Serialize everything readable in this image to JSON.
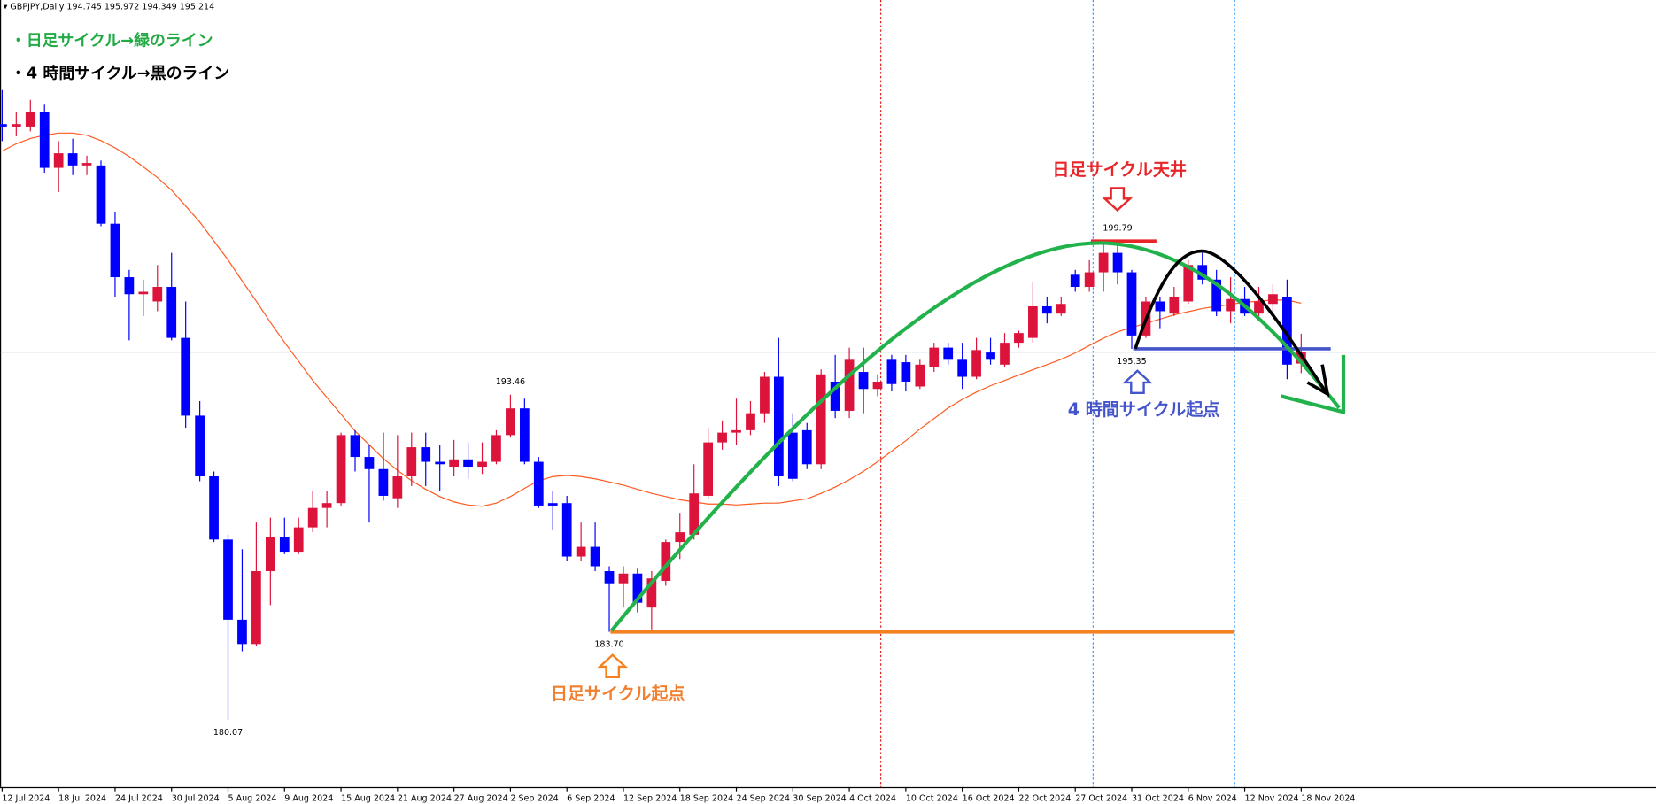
{
  "chart_data": {
    "type": "candlestick",
    "title": "GBPJPY,Daily",
    "notes": [
      "・日足サイクル→緑のライン",
      "・4 時間サイクル→黒のライン"
    ],
    "annotations": [
      "日足サイクル天井",
      "4 時間サイクル起点",
      "日足サイクル起点"
    ],
    "categories": [
      "12 Jul 2024",
      null,
      null,
      null,
      "18 Jul 2024",
      null,
      null,
      null,
      "24 Jul 2024",
      null,
      null,
      null,
      "30 Jul 2024",
      null,
      null,
      null,
      "5 Aug 2024",
      null,
      null,
      null,
      "9 Aug 2024",
      null,
      null,
      null,
      "15 Aug 2024",
      null,
      null,
      null,
      "21 Aug 2024",
      null,
      null,
      null,
      "27 Aug 2024",
      null,
      null,
      null,
      "2 Sep 2024",
      null,
      null,
      null,
      "6 Sep 2024",
      null,
      null,
      null,
      "12 Sep 2024",
      null,
      null,
      null,
      "18 Sep 2024",
      null,
      null,
      null,
      "24 Sep 2024",
      null,
      null,
      null,
      "30 Sep 2024",
      null,
      null,
      null,
      "4 Oct 2024",
      null,
      null,
      null,
      "10 Oct 2024",
      null,
      null,
      null,
      "16 Oct 2024",
      null,
      null,
      null,
      "22 Oct 2024",
      null,
      null,
      null,
      "27 Oct 2024",
      null,
      null,
      null,
      "31 Oct 2024",
      null,
      null,
      null,
      "6 Nov 2024",
      null,
      null,
      null,
      "12 Nov 2024",
      null,
      null,
      null,
      "18 Nov 2024"
    ],
    "open": [
      204.6,
      204.5,
      204.5,
      205.1,
      202.8,
      203.4,
      202.9,
      202.9,
      200.5,
      198.3,
      197.6,
      197.3,
      197.9,
      195.8,
      192.6,
      190.1,
      187.5,
      184.2,
      183.2,
      186.2,
      187.6,
      187.0,
      188.0,
      188.8,
      189.0,
      191.8,
      190.9,
      190.4,
      189.2,
      190.1,
      191.3,
      190.7,
      190.5,
      190.8,
      190.5,
      190.7,
      191.8,
      192.9,
      190.7,
      189.0,
      189.0,
      186.8,
      187.2,
      186.2,
      185.7,
      186.1,
      184.7,
      185.8,
      187.4,
      187.7,
      189.3,
      191.5,
      191.9,
      192.0,
      192.7,
      194.2,
      191.9,
      192.0,
      190.6,
      194.0,
      192.8,
      194.4,
      193.7,
      194.9,
      194.8,
      193.8,
      194.6,
      195.4,
      194.9,
      194.2,
      195.2,
      194.7,
      195.6,
      195.8,
      197.1,
      196.8,
      198.4,
      197.9,
      198.5,
      199.3,
      198.5,
      195.9,
      197.3,
      196.8,
      197.3,
      198.8,
      198.2,
      196.9,
      197.4,
      196.8,
      197.2,
      197.5,
      194.745
    ],
    "high": [
      206.0,
      205.1,
      205.6,
      205.4,
      203.9,
      204.0,
      203.3,
      203.1,
      201.0,
      198.6,
      198.2,
      198.8,
      199.3,
      197.3,
      193.2,
      190.3,
      187.7,
      187.1,
      188.2,
      188.4,
      188.4,
      188.4,
      189.5,
      189.5,
      191.9,
      192.0,
      191.4,
      191.9,
      191.8,
      191.9,
      191.9,
      191.4,
      191.6,
      191.5,
      191.5,
      192.0,
      193.46,
      193.3,
      190.9,
      189.5,
      189.3,
      188.2,
      188.2,
      186.4,
      186.4,
      186.3,
      186.2,
      187.5,
      188.6,
      190.6,
      192.1,
      192.4,
      193.3,
      193.2,
      194.4,
      195.8,
      192.7,
      192.3,
      194.5,
      195.1,
      195.4,
      195.4,
      194.3,
      195.1,
      195.1,
      194.9,
      195.6,
      195.6,
      195.6,
      195.8,
      195.8,
      196.0,
      196.1,
      198.1,
      197.5,
      197.5,
      198.6,
      199.0,
      199.7,
      199.79,
      198.6,
      197.5,
      197.5,
      197.9,
      199.0,
      199.3,
      198.6,
      198.3,
      197.9,
      197.9,
      198.0,
      198.2,
      195.972
    ],
    "low": [
      203.9,
      204.1,
      204.3,
      202.6,
      201.8,
      202.5,
      202.5,
      200.4,
      197.5,
      195.7,
      196.7,
      196.9,
      195.7,
      192.1,
      189.9,
      187.4,
      180.07,
      182.9,
      183.1,
      184.8,
      186.9,
      186.9,
      187.8,
      188.0,
      188.9,
      190.3,
      188.2,
      189.1,
      188.8,
      189.7,
      189.7,
      189.5,
      190.1,
      190.0,
      190.2,
      190.6,
      191.7,
      190.6,
      188.8,
      187.9,
      186.6,
      186.6,
      186.2,
      183.7,
      184.7,
      184.5,
      183.8,
      185.6,
      186.7,
      187.5,
      189.2,
      191.2,
      191.4,
      191.8,
      192.3,
      189.7,
      189.9,
      190.4,
      190.4,
      192.5,
      192.5,
      192.7,
      193.4,
      193.6,
      193.6,
      193.7,
      194.4,
      194.7,
      193.7,
      194.1,
      194.7,
      194.6,
      195.4,
      195.6,
      196.4,
      196.7,
      197.7,
      197.7,
      197.7,
      198.0,
      195.35,
      195.8,
      196.2,
      196.7,
      197.2,
      198.0,
      196.7,
      196.4,
      196.7,
      196.7,
      196.7,
      194.1,
      194.349
    ],
    "close": [
      204.5,
      204.6,
      205.1,
      202.8,
      203.4,
      202.9,
      203.0,
      200.5,
      198.3,
      197.6,
      197.7,
      197.9,
      195.8,
      192.6,
      190.1,
      187.5,
      184.2,
      183.2,
      186.2,
      187.6,
      187.0,
      188.0,
      188.8,
      189.0,
      191.8,
      190.9,
      190.4,
      189.3,
      190.1,
      191.3,
      190.7,
      190.6,
      190.8,
      190.5,
      190.7,
      191.8,
      192.9,
      190.7,
      188.9,
      188.9,
      186.8,
      187.2,
      186.4,
      185.7,
      186.1,
      184.9,
      185.9,
      187.4,
      187.8,
      189.4,
      191.5,
      191.9,
      192.0,
      192.7,
      194.2,
      190.1,
      190.0,
      190.6,
      194.3,
      192.8,
      194.9,
      193.7,
      194.0,
      193.9,
      194.0,
      194.7,
      195.4,
      194.9,
      194.2,
      195.3,
      194.9,
      195.6,
      196.0,
      197.1,
      196.8,
      197.2,
      197.9,
      198.5,
      199.3,
      198.5,
      195.9,
      197.3,
      196.9,
      197.5,
      198.8,
      198.2,
      196.9,
      197.4,
      196.8,
      197.3,
      197.6,
      194.7,
      195.214
    ],
    "ma_values": [
      203.49,
      203.79,
      204.01,
      204.14,
      204.23,
      204.23,
      204.14,
      203.92,
      203.62,
      203.27,
      202.84,
      202.4,
      201.88,
      201.23,
      200.57,
      199.79,
      199.01,
      198.14,
      197.31,
      196.44,
      195.62,
      194.83,
      194.05,
      193.35,
      192.66,
      191.96,
      191.4,
      190.83,
      190.35,
      189.92,
      189.57,
      189.27,
      189.05,
      188.92,
      188.87,
      189.0,
      189.27,
      189.61,
      189.92,
      190.09,
      190.14,
      190.09,
      190.0,
      189.87,
      189.74,
      189.57,
      189.4,
      189.27,
      189.14,
      189.05,
      188.96,
      188.96,
      188.92,
      188.96,
      189.0,
      189.0,
      189.09,
      189.18,
      189.4,
      189.66,
      189.96,
      190.31,
      190.7,
      191.14,
      191.57,
      192.05,
      192.48,
      192.92,
      193.27,
      193.57,
      193.83,
      194.05,
      194.27,
      194.49,
      194.7,
      194.92,
      195.18,
      195.49,
      195.79,
      196.05,
      196.23,
      196.4,
      196.57,
      196.75,
      196.88,
      197.01,
      197.1,
      197.18,
      197.27,
      197.31,
      197.36,
      197.36,
      197.23
    ],
    "price_labels": [
      199.79,
      195.35,
      193.46,
      {
        "value": 183.7,
        "label": "183.70"
      },
      180.07
    ],
    "ylim": [
      177.31,
      209.71
    ],
    "up_color": "#dc143c",
    "down_color": "#0000ff",
    "ma_color": "#ff5a1f"
  }
}
